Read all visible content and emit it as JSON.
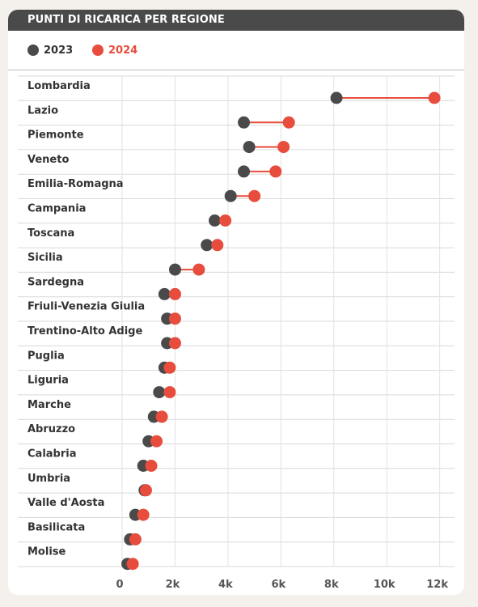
{
  "chart_data": {
    "type": "dumbbell",
    "title": "PUNTI DI RICARICA PER REGIONE",
    "legend": [
      {
        "name": "2023",
        "color": "#4a4a4a"
      },
      {
        "name": "2024",
        "color": "#e74c3c"
      }
    ],
    "xlim": [
      0,
      12500
    ],
    "ticks": [
      {
        "value": 0,
        "label": "0"
      },
      {
        "value": 2000,
        "label": "2k"
      },
      {
        "value": 4000,
        "label": "4k"
      },
      {
        "value": 6000,
        "label": "6k"
      },
      {
        "value": 8000,
        "label": "8k"
      },
      {
        "value": 10000,
        "label": "10k"
      },
      {
        "value": 12000,
        "label": "12k"
      }
    ],
    "categories": [
      "Lombardia",
      "Lazio",
      "Piemonte",
      "Veneto",
      "Emilia-Romagna",
      "Campania",
      "Toscana",
      "Sicilia",
      "Sardegna",
      "Friuli-Venezia Giulia",
      "Trentino-Alto Adige",
      "Puglia",
      "Liguria",
      "Marche",
      "Abruzzo",
      "Calabria",
      "Umbria",
      "Valle d'Aosta",
      "Basilicata",
      "Molise"
    ],
    "series": [
      {
        "name": "2023",
        "values": [
          8100,
          4600,
          4800,
          4600,
          4100,
          3500,
          3200,
          2000,
          1600,
          1700,
          1700,
          1600,
          1400,
          1200,
          1000,
          800,
          850,
          500,
          300,
          200
        ]
      },
      {
        "name": "2024",
        "values": [
          11800,
          6300,
          6100,
          5800,
          5000,
          3900,
          3600,
          2900,
          2000,
          2000,
          2000,
          1800,
          1800,
          1500,
          1300,
          1100,
          900,
          800,
          500,
          400
        ]
      }
    ],
    "grid": true
  },
  "colors": {
    "header_bg": "#4a4a4a",
    "accent": "#e74c3c",
    "dark": "#4a4a4a"
  }
}
